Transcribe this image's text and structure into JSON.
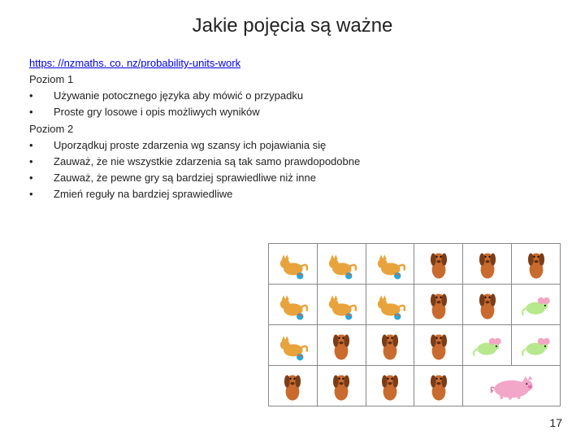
{
  "title": "Jakie pojęcia są ważne",
  "link_text": "https: //nzmaths. co. nz/probability-units-work",
  "level1_label": "Poziom 1",
  "level1_items": [
    "Używanie potocznego języka aby mówić o przypadku",
    "Proste gry losowe i opis możliwych wyników"
  ],
  "level2_label": "Poziom 2",
  "level2_items": [
    "Uporządkuj proste zdarzenia wg szansy ich pojawiania się",
    "Zauważ, że nie wszystkie zdarzenia są tak samo prawdopodobne",
    "Zauważ, że pewne gry są bardziej sprawiedliwe niż inne",
    "Zmień reguły na bardziej sprawiedliwe"
  ],
  "page_number": "17",
  "animals": {
    "cat": {
      "body": "#e8a33c",
      "ball": "#2aa6d8"
    },
    "dog": {
      "body": "#c96a2e",
      "ear": "#7a3d17"
    },
    "mouse": {
      "body": "#b7e88d",
      "ear": "#f3a6c4"
    },
    "pig": {
      "body": "#f2a6c8"
    }
  },
  "grid": {
    "rows": 4,
    "cols": 6,
    "cells": [
      "cat",
      "cat",
      "cat",
      "dog",
      "dog",
      "dog",
      "cat",
      "cat",
      "cat",
      "dog",
      "dog",
      "mouse",
      "cat",
      "dog",
      "dog",
      "dog",
      "mouse",
      "mouse",
      "dog",
      "dog",
      "dog",
      "dog",
      "pig",
      "pig"
    ],
    "merges": [
      {
        "r": 3,
        "c": 4,
        "rowspan": 1,
        "colspan": 2
      }
    ]
  }
}
